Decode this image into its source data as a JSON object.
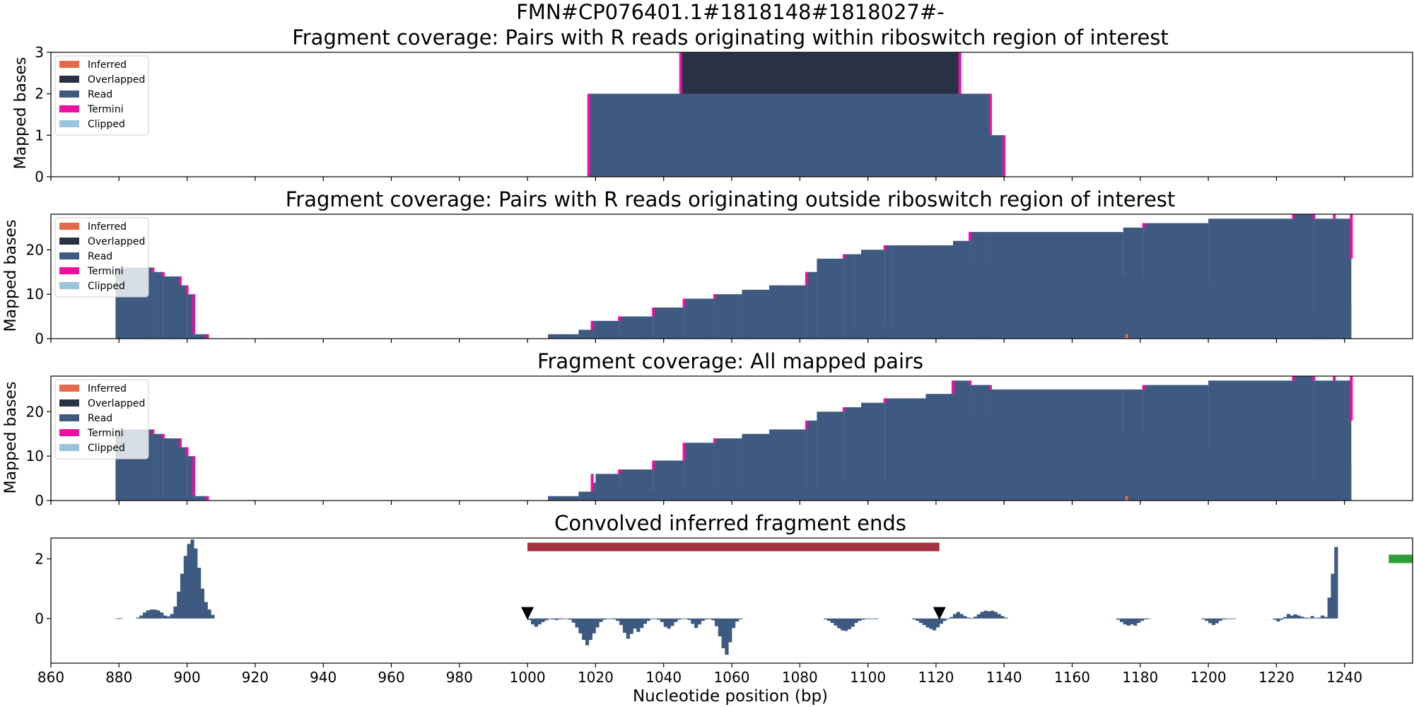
{
  "figure": {
    "suptitle": "FMN#CP076401.1#1818148#1818027#-",
    "xlabel": "Nucleotide position (bp)",
    "xlim": [
      860,
      1260
    ],
    "xticks": [
      860,
      880,
      900,
      920,
      940,
      960,
      980,
      1000,
      1020,
      1040,
      1060,
      1080,
      1100,
      1120,
      1140,
      1160,
      1180,
      1200,
      1220,
      1240
    ],
    "legend_labels": [
      "Inferred",
      "Overlapped",
      "Read",
      "Termini",
      "Clipped"
    ],
    "colors": {
      "Inferred": "#e8694a",
      "Overlapped": "#283244",
      "Read": "#3e5a80",
      "Termini": "#ee0fa0",
      "Clipped": "#9bc4de",
      "region_bar": "#a3303e",
      "marker_bar": "#2e9e38"
    }
  },
  "chart_data": [
    {
      "type": "area",
      "title": "Fragment coverage: Pairs with R reads originating within riboswitch region of interest",
      "ylabel": "Mapped bases",
      "ylim": [
        0,
        3
      ],
      "yticks": [
        0,
        1,
        2,
        3
      ],
      "legend": "top-left",
      "series": [
        {
          "name": "Read",
          "steps": [
            [
              1018,
              1045,
              2
            ],
            [
              1045,
              1127,
              2
            ],
            [
              1127,
              1136,
              2
            ],
            [
              1136,
              1140,
              1
            ]
          ]
        },
        {
          "name": "Overlapped",
          "steps": [
            [
              1018,
              1045,
              2
            ],
            [
              1045,
              1127,
              3
            ],
            [
              1127,
              1136,
              2
            ],
            [
              1136,
              1140,
              1
            ]
          ]
        }
      ],
      "termini": [
        [
          1018,
          0,
          2
        ],
        [
          1045,
          2,
          3
        ],
        [
          1127,
          2,
          3
        ],
        [
          1136,
          1,
          2
        ],
        [
          1140,
          0,
          1
        ]
      ],
      "inferred": []
    },
    {
      "type": "area",
      "title": "Fragment coverage: Pairs with R reads originating outside riboswitch region of interest",
      "ylabel": "Mapped bases",
      "ylim": [
        0,
        28
      ],
      "yticks": [
        0,
        10,
        20
      ],
      "legend": "top-left",
      "series": [
        {
          "name": "Read",
          "steps": [
            [
              879,
              890,
              16
            ],
            [
              890,
              893,
              15
            ],
            [
              893,
              898,
              14
            ],
            [
              898,
              900,
              12
            ],
            [
              900,
              902,
              10
            ],
            [
              902,
              906,
              1
            ],
            [
              1006,
              1015,
              1
            ],
            [
              1015,
              1019,
              2
            ],
            [
              1019,
              1020,
              4
            ],
            [
              1020,
              1027,
              4
            ],
            [
              1027,
              1037,
              5
            ],
            [
              1037,
              1046,
              7
            ],
            [
              1046,
              1055,
              9
            ],
            [
              1055,
              1063,
              10
            ],
            [
              1063,
              1071,
              11
            ],
            [
              1071,
              1082,
              12
            ],
            [
              1082,
              1085,
              15
            ],
            [
              1085,
              1093,
              18
            ],
            [
              1093,
              1096,
              19
            ],
            [
              1096,
              1098,
              19
            ],
            [
              1098,
              1105,
              20
            ],
            [
              1105,
              1107,
              21
            ],
            [
              1107,
              1117,
              21
            ],
            [
              1117,
              1125,
              21
            ],
            [
              1125,
              1130,
              22
            ],
            [
              1130,
              1136,
              24
            ],
            [
              1136,
              1175,
              24
            ],
            [
              1175,
              1181,
              25
            ],
            [
              1181,
              1200,
              26
            ],
            [
              1200,
              1225,
              27
            ],
            [
              1225,
              1231,
              28
            ],
            [
              1231,
              1242,
              27
            ]
          ]
        },
        {
          "name": "Overlapped",
          "steps": [
            [
              1095,
              1107,
              3
            ],
            [
              1107,
              1121,
              13
            ],
            [
              1121,
              1128,
              15
            ],
            [
              1128,
              1130,
              17
            ],
            [
              1130,
              1150,
              17
            ],
            [
              1150,
              1170,
              16
            ],
            [
              1170,
              1177,
              14
            ],
            [
              1177,
              1181,
              12
            ],
            [
              1181,
              1183,
              14
            ],
            [
              1183,
              1185,
              15
            ],
            [
              1185,
              1188,
              18
            ],
            [
              1188,
              1193,
              16
            ],
            [
              1193,
              1200,
              13
            ],
            [
              1200,
              1210,
              12
            ],
            [
              1210,
              1220,
              11
            ],
            [
              1220,
              1227,
              10
            ],
            [
              1227,
              1230,
              9
            ],
            [
              1230,
              1233,
              5
            ],
            [
              1233,
              1235,
              4
            ],
            [
              1235,
              1237,
              5
            ],
            [
              1237,
              1239,
              7
            ],
            [
              1239,
              1242,
              8
            ]
          ]
        }
      ],
      "termini": [
        [
          890,
          15,
          16
        ],
        [
          893,
          14,
          15
        ],
        [
          898,
          12,
          14
        ],
        [
          900,
          10,
          12
        ],
        [
          902,
          1,
          10
        ],
        [
          906,
          0,
          1
        ],
        [
          1019,
          2,
          4
        ],
        [
          1027,
          4,
          5
        ],
        [
          1037,
          5,
          7
        ],
        [
          1046,
          7,
          9
        ],
        [
          1055,
          9,
          10
        ],
        [
          1082,
          12,
          15
        ],
        [
          1093,
          18,
          19
        ],
        [
          1105,
          20,
          21
        ],
        [
          1130,
          22,
          24
        ],
        [
          1181,
          25,
          26
        ],
        [
          1225,
          27,
          28
        ],
        [
          1231,
          27,
          28
        ],
        [
          1237,
          27,
          28
        ],
        [
          1242,
          18,
          28
        ]
      ],
      "inferred": [
        [
          1176,
          0,
          1
        ]
      ]
    },
    {
      "type": "area",
      "title": "Fragment coverage: All mapped pairs",
      "ylabel": "Mapped bases",
      "ylim": [
        0,
        28
      ],
      "yticks": [
        0,
        10,
        20
      ],
      "legend": "top-left",
      "series": [
        {
          "name": "Read",
          "steps": [
            [
              879,
              890,
              16
            ],
            [
              890,
              893,
              15
            ],
            [
              893,
              898,
              14
            ],
            [
              898,
              900,
              12
            ],
            [
              900,
              902,
              10
            ],
            [
              902,
              906,
              1
            ],
            [
              1006,
              1015,
              1
            ],
            [
              1015,
              1019,
              2
            ],
            [
              1019,
              1020,
              4
            ],
            [
              1020,
              1027,
              6
            ],
            [
              1027,
              1037,
              7
            ],
            [
              1037,
              1046,
              9
            ],
            [
              1046,
              1055,
              13
            ],
            [
              1055,
              1063,
              14
            ],
            [
              1063,
              1071,
              15
            ],
            [
              1071,
              1082,
              16
            ],
            [
              1082,
              1085,
              18
            ],
            [
              1085,
              1093,
              20
            ],
            [
              1093,
              1098,
              21
            ],
            [
              1098,
              1105,
              22
            ],
            [
              1105,
              1117,
              23
            ],
            [
              1117,
              1125,
              24
            ],
            [
              1125,
              1130,
              27
            ],
            [
              1130,
              1136,
              26
            ],
            [
              1136,
              1175,
              25
            ],
            [
              1175,
              1181,
              25
            ],
            [
              1181,
              1200,
              26
            ],
            [
              1200,
              1225,
              27
            ],
            [
              1225,
              1231,
              28
            ],
            [
              1231,
              1242,
              27
            ]
          ]
        },
        {
          "name": "Overlapped",
          "steps": [
            [
              1018,
              1045,
              2
            ],
            [
              1045,
              1085,
              3
            ],
            [
              1085,
              1095,
              4
            ],
            [
              1095,
              1107,
              5
            ],
            [
              1107,
              1121,
              16
            ],
            [
              1121,
              1124,
              18
            ],
            [
              1124,
              1128,
              19
            ],
            [
              1128,
              1130,
              20
            ],
            [
              1130,
              1150,
              19
            ],
            [
              1150,
              1170,
              18
            ],
            [
              1170,
              1177,
              15
            ],
            [
              1177,
              1181,
              13
            ],
            [
              1181,
              1185,
              15
            ],
            [
              1185,
              1188,
              18
            ],
            [
              1188,
              1193,
              16
            ],
            [
              1193,
              1200,
              13
            ],
            [
              1200,
              1210,
              12
            ],
            [
              1210,
              1220,
              11
            ],
            [
              1220,
              1227,
              10
            ],
            [
              1227,
              1230,
              9
            ],
            [
              1230,
              1233,
              5
            ],
            [
              1233,
              1235,
              4
            ],
            [
              1235,
              1237,
              5
            ],
            [
              1237,
              1239,
              7
            ],
            [
              1239,
              1242,
              8
            ]
          ]
        }
      ],
      "termini": [
        [
          890,
          15,
          16
        ],
        [
          893,
          14,
          15
        ],
        [
          898,
          12,
          14
        ],
        [
          900,
          10,
          12
        ],
        [
          902,
          1,
          10
        ],
        [
          906,
          0,
          1
        ],
        [
          1019,
          2,
          6
        ],
        [
          1027,
          6,
          7
        ],
        [
          1037,
          7,
          9
        ],
        [
          1046,
          9,
          13
        ],
        [
          1055,
          13,
          14
        ],
        [
          1082,
          16,
          18
        ],
        [
          1093,
          20,
          21
        ],
        [
          1105,
          22,
          23
        ],
        [
          1125,
          24,
          27
        ],
        [
          1130,
          26,
          27
        ],
        [
          1136,
          25,
          26
        ],
        [
          1181,
          25,
          26
        ],
        [
          1225,
          27,
          28
        ],
        [
          1231,
          27,
          28
        ],
        [
          1237,
          27,
          28
        ],
        [
          1242,
          18,
          28
        ]
      ],
      "inferred": [
        [
          1176,
          0,
          1
        ]
      ]
    },
    {
      "type": "bar",
      "title": "Convolved inferred fragment ends",
      "ylim": [
        -1.5,
        2.7
      ],
      "yticks": [
        0,
        2
      ],
      "segments": [
        {
          "start": 879,
          "values": [
            -0.02,
            0.01
          ]
        },
        {
          "start": 885,
          "values": [
            0.03,
            0.1,
            0.2,
            0.27,
            0.3,
            0.3,
            0.27,
            0.2,
            0.1,
            0.07,
            0.15,
            0.4,
            0.9,
            1.5,
            2.1,
            2.5,
            2.65,
            2.35,
            1.7,
            1.0,
            0.55,
            0.3,
            0.12
          ]
        },
        {
          "start": 1000,
          "values": [
            -0.05,
            -0.2,
            -0.28,
            -0.2,
            -0.12,
            -0.06,
            -0.02,
            -0.03,
            -0.05,
            -0.03,
            -0.02,
            -0.01,
            -0.04,
            -0.14,
            -0.3,
            -0.5,
            -0.72,
            -0.9,
            -0.72,
            -0.5,
            -0.3,
            -0.12,
            -0.04,
            -0.02,
            -0.01,
            -0.03,
            -0.08,
            -0.22,
            -0.48,
            -0.68,
            -0.52,
            -0.34,
            -0.45,
            -0.32,
            -0.18,
            -0.08,
            -0.02,
            -0.01,
            -0.04,
            -0.12,
            -0.28,
            -0.34,
            -0.25,
            -0.12,
            -0.04,
            -0.02,
            -0.01,
            -0.05,
            -0.18,
            -0.32,
            -0.2,
            -0.08,
            -0.03,
            -0.02,
            -0.06,
            -0.26,
            -0.6,
            -1.0,
            -1.22,
            -0.8,
            -0.32,
            -0.1,
            -0.03
          ]
        },
        {
          "start": 1087,
          "values": [
            -0.03,
            -0.08,
            -0.15,
            -0.24,
            -0.33,
            -0.4,
            -0.42,
            -0.36,
            -0.28,
            -0.15,
            -0.08,
            -0.04,
            -0.02,
            -0.01,
            -0.01,
            -0.02
          ]
        },
        {
          "start": 1113,
          "values": [
            -0.03,
            -0.08,
            -0.15,
            -0.22,
            -0.3,
            -0.35,
            -0.4,
            -0.3,
            -0.18,
            -0.08,
            -0.02,
            0.05,
            0.15,
            0.22,
            0.15,
            0.08,
            0.03,
            0.01,
            0.06,
            0.14,
            0.22,
            0.26,
            0.24,
            0.26,
            0.22,
            0.15,
            0.08,
            0.03
          ]
        },
        {
          "start": 1173,
          "values": [
            -0.04,
            -0.12,
            -0.2,
            -0.24,
            -0.2,
            -0.24,
            -0.15,
            -0.08,
            -0.03,
            -0.01
          ]
        },
        {
          "start": 1198,
          "values": [
            -0.03,
            -0.08,
            -0.16,
            -0.22,
            -0.16,
            -0.08,
            -0.03,
            -0.01,
            -0.01,
            -0.01
          ]
        },
        {
          "start": 1219,
          "values": [
            -0.04,
            -0.1,
            -0.04,
            0.05,
            0.15,
            0.1,
            0.14,
            0.1,
            0.06,
            0.03,
            0.01,
            0.08,
            0.02,
            0.03,
            0.1,
            0.05,
            0.7,
            1.5,
            2.4
          ]
        }
      ],
      "region_bar": {
        "x_start": 1000,
        "x_end": 1121,
        "y": 2.4
      },
      "marker_bar": {
        "x_start": 1253,
        "x_end": 1260,
        "y": 2.0
      },
      "triangles": [
        {
          "x": 1000,
          "y": 0.17
        },
        {
          "x": 1121,
          "y": 0.17
        }
      ]
    }
  ]
}
